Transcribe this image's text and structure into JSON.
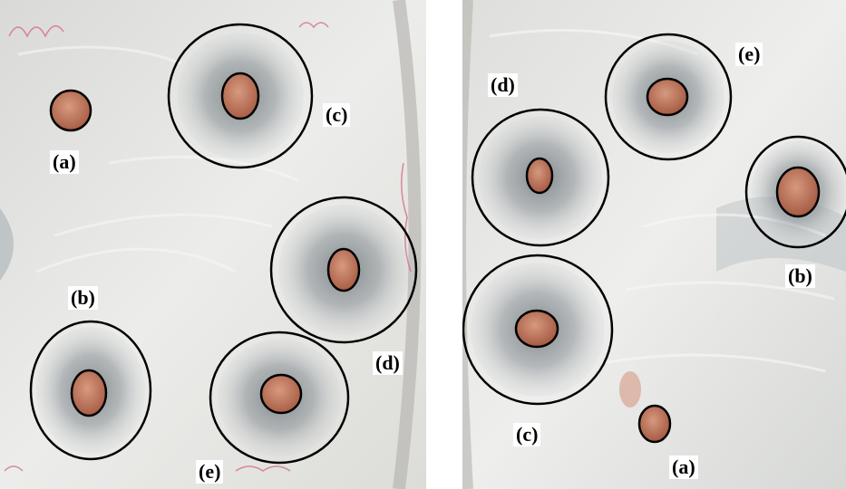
{
  "colors": {
    "agar": "#e7e8e6",
    "inhibition_zone": "#8a9196",
    "colony": "#b8705a",
    "ring": "#000000",
    "label_bg": "#ffffff",
    "label_text": "#000000"
  },
  "left_panel": {
    "labels": {
      "a": "(a)",
      "b": "(b)",
      "c": "(c)",
      "d": "(d)",
      "e": "(e)"
    }
  },
  "right_panel": {
    "labels": {
      "a": "(a)",
      "b": "(b)",
      "c": "(c)",
      "d": "(d)",
      "e": "(e)"
    }
  }
}
